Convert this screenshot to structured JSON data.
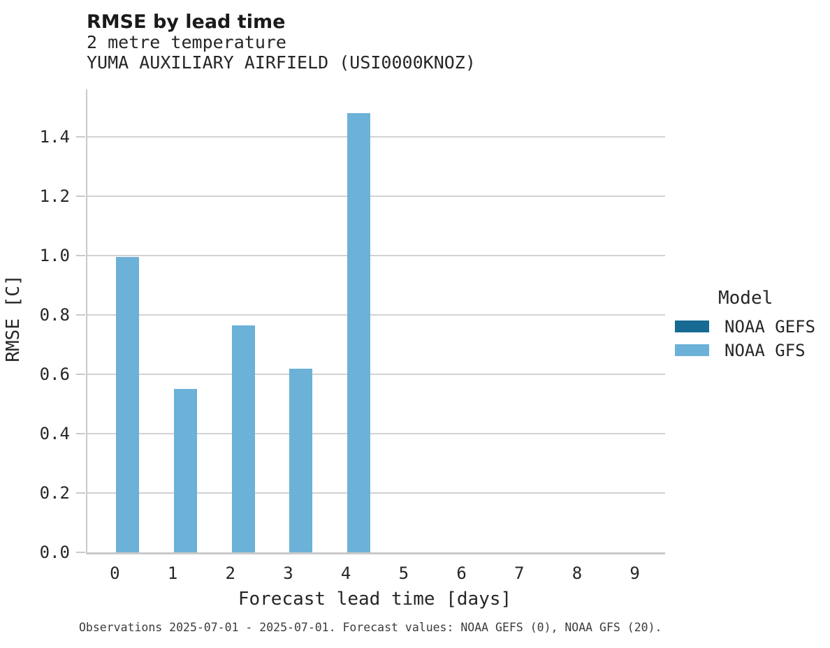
{
  "header": {
    "title": "RMSE by lead time",
    "subtitle1": "2 metre temperature",
    "subtitle2": "YUMA AUXILIARY AIRFIELD (USI0000KNOZ)"
  },
  "chart_data": {
    "type": "bar",
    "title": "RMSE by lead time",
    "xlabel": "Forecast lead time [days]",
    "ylabel": "RMSE [C]",
    "categories": [
      0,
      1,
      2,
      3,
      4,
      5,
      6,
      7,
      8,
      9
    ],
    "series": [
      {
        "name": "NOAA GEFS",
        "color": "#166a94",
        "values": [
          null,
          null,
          null,
          null,
          null,
          null,
          null,
          null,
          null,
          null
        ]
      },
      {
        "name": "NOAA GFS",
        "color": "#6cb1d7",
        "values": [
          0.995,
          0.55,
          0.765,
          0.62,
          1.48,
          null,
          null,
          null,
          null,
          null
        ]
      }
    ],
    "ylim": [
      0,
      1.56
    ],
    "yticks": [
      0.0,
      0.2,
      0.4,
      0.6,
      0.8,
      1.0,
      1.2,
      1.4
    ],
    "grid": true,
    "legend_title": "Model",
    "legend_position": "right"
  },
  "legend": {
    "title": "Model",
    "items": [
      {
        "label": "NOAA GEFS",
        "color": "#166a94"
      },
      {
        "label": "NOAA GFS",
        "color": "#6cb1d7"
      }
    ]
  },
  "caption": "Observations 2025-07-01 - 2025-07-01. Forecast values: NOAA GEFS (0), NOAA GFS (20)."
}
